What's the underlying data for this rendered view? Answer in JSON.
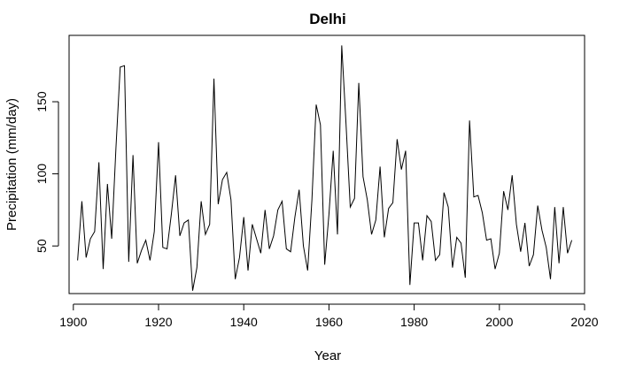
{
  "chart_data": {
    "type": "line",
    "title": "Delhi",
    "xlabel": "Year",
    "ylabel": "Precipitation (mm/day)",
    "xlim": [
      1899,
      2020
    ],
    "ylim": [
      17,
      196
    ],
    "xticks": [
      1900,
      1920,
      1940,
      1960,
      1980,
      2000,
      2020
    ],
    "yticks": [
      50,
      100,
      150
    ],
    "grid": false,
    "series": [
      {
        "color": "#000000",
        "x": [
          1901,
          1902,
          1903,
          1904,
          1905,
          1906,
          1907,
          1908,
          1909,
          1910,
          1911,
          1912,
          1913,
          1914,
          1915,
          1916,
          1917,
          1918,
          1919,
          1920,
          1921,
          1922,
          1923,
          1924,
          1925,
          1926,
          1927,
          1928,
          1929,
          1930,
          1931,
          1932,
          1933,
          1934,
          1935,
          1936,
          1937,
          1938,
          1939,
          1940,
          1941,
          1942,
          1943,
          1944,
          1945,
          1946,
          1947,
          1948,
          1949,
          1950,
          1951,
          1952,
          1953,
          1954,
          1955,
          1956,
          1957,
          1958,
          1959,
          1960,
          1961,
          1962,
          1963,
          1964,
          1965,
          1966,
          1967,
          1968,
          1969,
          1970,
          1971,
          1972,
          1973,
          1974,
          1975,
          1976,
          1977,
          1978,
          1979,
          1980,
          1981,
          1982,
          1983,
          1984,
          1985,
          1986,
          1987,
          1988,
          1989,
          1990,
          1991,
          1992,
          1993,
          1994,
          1995,
          1996,
          1997,
          1998,
          1999,
          2000,
          2001,
          2002,
          2003,
          2004,
          2005,
          2006,
          2007,
          2008,
          2009,
          2010,
          2011,
          2012,
          2013,
          2014,
          2015,
          2016,
          2017
        ],
        "values": [
          40,
          81,
          42,
          55,
          60,
          108,
          34,
          93,
          55,
          118,
          174,
          175,
          39,
          113,
          38,
          47,
          54,
          40,
          60,
          122,
          49,
          48,
          72,
          99,
          57,
          66,
          68,
          19,
          35,
          81,
          58,
          65,
          166,
          79,
          96,
          101,
          82,
          27,
          42,
          70,
          33,
          65,
          55,
          45,
          75,
          48,
          57,
          75,
          81,
          48,
          46,
          70,
          89,
          50,
          33,
          82,
          148,
          134,
          37,
          72,
          116,
          58,
          189,
          135,
          77,
          83,
          163,
          98,
          82,
          58,
          68,
          105,
          56,
          76,
          80,
          124,
          103,
          116,
          23,
          66,
          66,
          40,
          71,
          67,
          40,
          44,
          87,
          77,
          35,
          56,
          52,
          28,
          137,
          84,
          85,
          73,
          54,
          55,
          34,
          45,
          88,
          75,
          99,
          65,
          46,
          66,
          36,
          44,
          78,
          61,
          49,
          27,
          77,
          38,
          77,
          45,
          54
        ]
      }
    ]
  }
}
